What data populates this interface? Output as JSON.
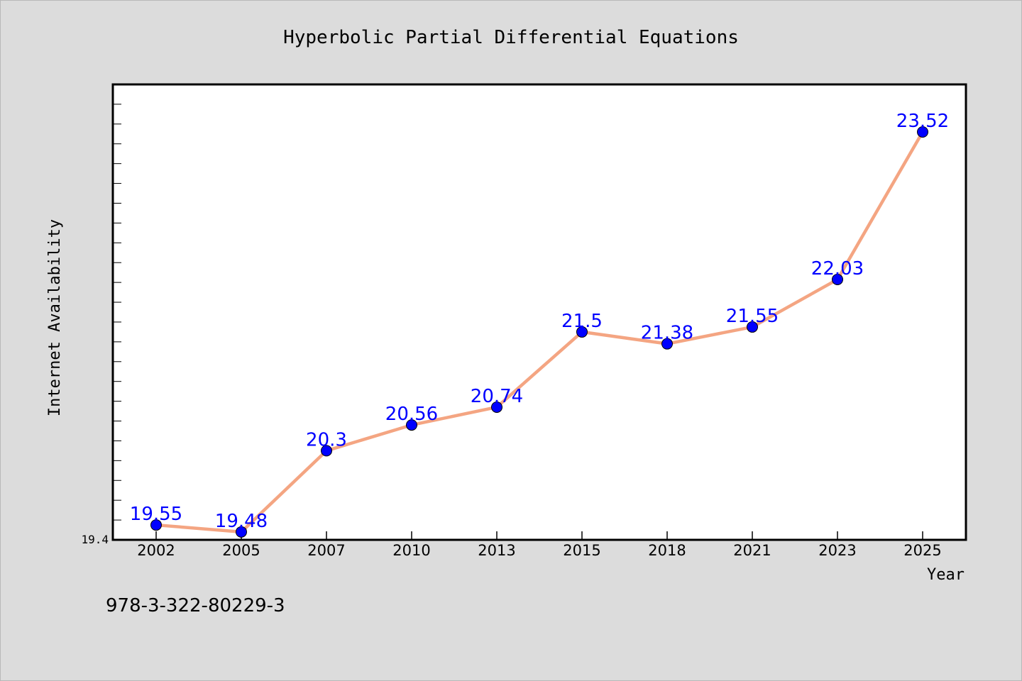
{
  "chart_data": {
    "type": "line",
    "title": "Hyperbolic Partial Differential Equations",
    "xlabel": "Year",
    "ylabel": "Internet Availability",
    "categories": [
      "2002",
      "2005",
      "2007",
      "2010",
      "2013",
      "2015",
      "2018",
      "2021",
      "2023",
      "2025"
    ],
    "series": [
      {
        "values": [
          19.55,
          19.48,
          20.3,
          20.56,
          20.74,
          21.5,
          21.38,
          21.55,
          22.03,
          23.52
        ],
        "data_labels": [
          "19.55",
          "19.48",
          "20.3",
          "20.56",
          "20.74",
          "21.5",
          "21.38",
          "21.55",
          "22.03",
          "23.52"
        ]
      }
    ],
    "ylim": [
      19.4,
      24.0
    ],
    "y_tick_labels": [
      "19.4"
    ],
    "y_minor_tick_step": 0.2,
    "grid": false,
    "legend": "none",
    "colors": {
      "line": "#f4a582",
      "marker": "#0000ff",
      "data_label": "#0000ff",
      "plot_background": "#ffffff",
      "page_background": "#dcdcdc"
    }
  },
  "footer": {
    "isbn": "978-3-322-80229-3"
  }
}
